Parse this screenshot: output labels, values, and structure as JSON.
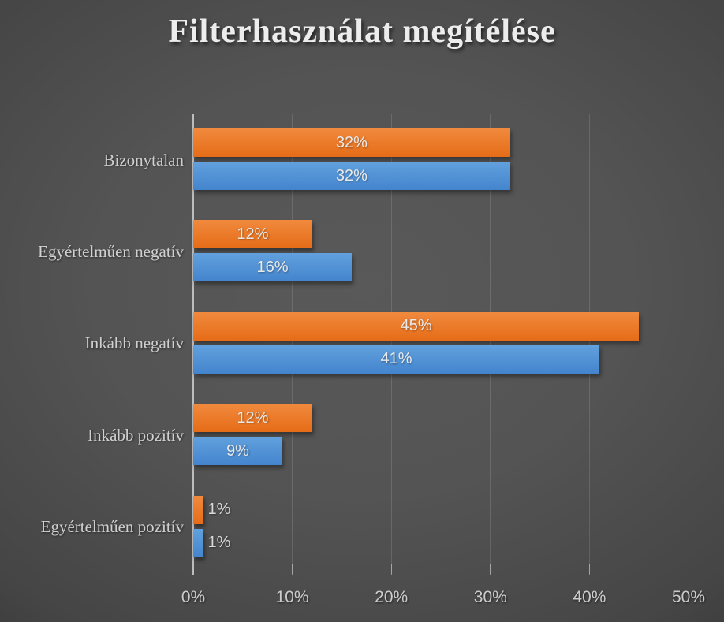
{
  "title": "Filterhasználat megítélése",
  "chart_data": {
    "type": "bar",
    "orientation": "horizontal",
    "title": "Filterhasználat megítélése",
    "categories": [
      "Bizonytalan",
      "Egyértelműen negatív",
      "Inkább negatív",
      "Inkább pozitív",
      "Egyértelműen pozitív"
    ],
    "series": [
      {
        "name": "orange",
        "color": "#ED7D31",
        "gradient": [
          "#F08A3E",
          "#E66C17"
        ],
        "values": [
          32,
          12,
          45,
          12,
          1
        ]
      },
      {
        "name": "blue",
        "color": "#5B9BD5",
        "gradient": [
          "#62A1DD",
          "#4384CD"
        ],
        "values": [
          32,
          16,
          41,
          9,
          1
        ]
      }
    ],
    "value_label_suffix": "%",
    "x_ticks": [
      "0%",
      "10%",
      "20%",
      "30%",
      "40%",
      "50%"
    ],
    "xlim": [
      0,
      50
    ],
    "grid": true,
    "legend": false
  },
  "colors": {
    "title_text": "#EDEDED",
    "category_text": "#D0D0D0",
    "tick_text": "#CCCCCC",
    "value_label_inside": "#E9E9E9",
    "value_label_outside": "#D8D8D8",
    "axis_line": "#BDBDBD",
    "gridline": "rgba(255,255,255,0.13)",
    "axis_tick": "rgba(255,255,255,0.42)"
  }
}
